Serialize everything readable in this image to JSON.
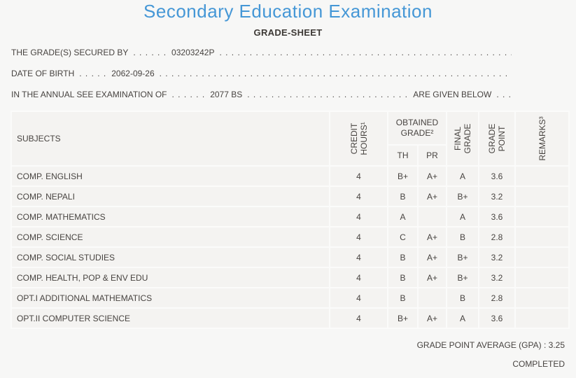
{
  "page": {
    "title": "Secondary Education Examination",
    "subtitle": "GRADE-SHEET"
  },
  "info": {
    "dot_fill": ". . . . . . . . . . . . . . . . . . . . . . . . . . . . . . . . . . . . . . . . . . . . . . . . . . . . . . . . . . . . . . . . . . . . . . . . . . . .",
    "lines": [
      {
        "label": "THE GRADE(S) SECURED BY",
        "pre_dots": ". . . . . .",
        "value": "03203242P",
        "suffix": "",
        "end_dots": ""
      },
      {
        "label": "DATE OF BIRTH",
        "pre_dots": ". . . . .",
        "value": "2062-09-26",
        "suffix": "",
        "end_dots": ""
      },
      {
        "label": "IN THE ANNUAL SEE EXAMINATION OF",
        "pre_dots": ". . . . . .",
        "value": "2077 BS",
        "suffix": "ARE GIVEN BELOW",
        "end_dots": ". . ."
      }
    ]
  },
  "table": {
    "headers": {
      "subjects": "SUBJECTS",
      "credit_hours": "CREDIT HOURS¹",
      "obtained_grade": "OBTAINED GRADE²",
      "th": "TH",
      "pr": "PR",
      "final_grade": "FINAL GRADE",
      "grade_point": "GRADE POINT",
      "remarks": "REMARKS³"
    },
    "rows": [
      {
        "subject": "COMP. ENGLISH",
        "credit": "4",
        "th": "B+",
        "pr": "A+",
        "final": "A",
        "point": "3.6",
        "remarks": ""
      },
      {
        "subject": "COMP. NEPALI",
        "credit": "4",
        "th": "B",
        "pr": "A+",
        "final": "B+",
        "point": "3.2",
        "remarks": ""
      },
      {
        "subject": "COMP. MATHEMATICS",
        "credit": "4",
        "th": "A",
        "pr": "",
        "final": "A",
        "point": "3.6",
        "remarks": ""
      },
      {
        "subject": "COMP. SCIENCE",
        "credit": "4",
        "th": "C",
        "pr": "A+",
        "final": "B",
        "point": "2.8",
        "remarks": ""
      },
      {
        "subject": "COMP. SOCIAL STUDIES",
        "credit": "4",
        "th": "B",
        "pr": "A+",
        "final": "B+",
        "point": "3.2",
        "remarks": ""
      },
      {
        "subject": "COMP. HEALTH, POP & ENV EDU",
        "credit": "4",
        "th": "B",
        "pr": "A+",
        "final": "B+",
        "point": "3.2",
        "remarks": ""
      },
      {
        "subject": "OPT.I ADDITIONAL MATHEMATICS",
        "credit": "4",
        "th": "B",
        "pr": "",
        "final": "B",
        "point": "2.8",
        "remarks": ""
      },
      {
        "subject": "OPT.II COMPUTER SCIENCE",
        "credit": "4",
        "th": "B+",
        "pr": "A+",
        "final": "A",
        "point": "3.6",
        "remarks": ""
      }
    ]
  },
  "footer": {
    "gpa_label": "GRADE POINT AVERAGE (GPA) :",
    "gpa_value": "3.25",
    "status": "COMPLETED"
  },
  "colors": {
    "title_blue": "#4597d6",
    "text": "#474340",
    "cell_bg": "#f4f3f1",
    "page_bg": "#f7f7f6"
  }
}
